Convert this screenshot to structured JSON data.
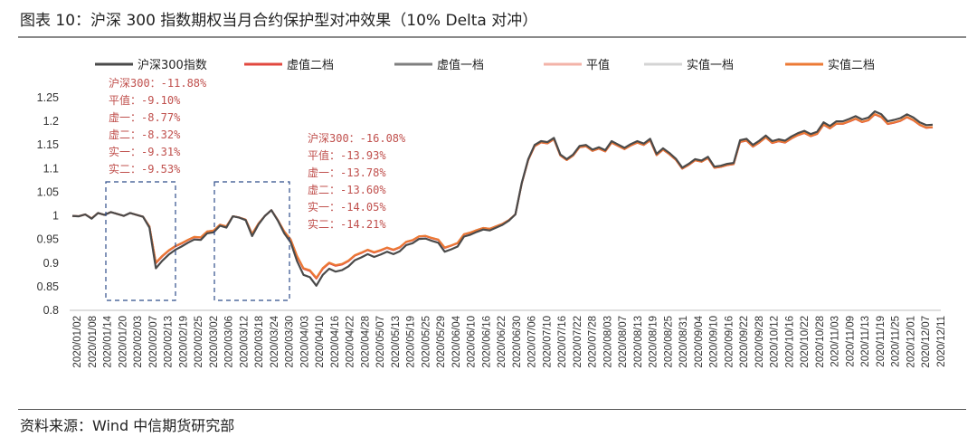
{
  "page": {
    "title": "图表 10：沪深 300 指数期权当月合约保护型对冲效果（10% Delta 对冲）",
    "source": "资料来源：Wind 中信期货研究部"
  },
  "chart_data": {
    "type": "line",
    "title": "图表 10：沪深 300 指数期权当月合约保护型对冲效果（10% Delta 对冲）",
    "xlabel": "",
    "ylabel": "",
    "ylim": [
      0.8,
      1.25
    ],
    "yticks": [
      "1.25",
      "1.2",
      "1.15",
      "1.1",
      "1.05",
      "1",
      "0.95",
      "0.9",
      "0.85",
      "0.8"
    ],
    "x_tick_labels": [
      "2020/01/02",
      "2020/01/08",
      "2020/01/14",
      "2020/01/20",
      "2020/02/03",
      "2020/02/07",
      "2020/02/13",
      "2020/02/19",
      "2020/02/25",
      "2020/03/02",
      "2020/03/06",
      "2020/03/12",
      "2020/03/18",
      "2020/03/24",
      "2020/03/30",
      "2020/04/03",
      "2020/04/10",
      "2020/04/16",
      "2020/04/22",
      "2020/04/28",
      "2020/05/07",
      "2020/05/13",
      "2020/05/19",
      "2020/05/25",
      "2020/05/29",
      "2020/06/04",
      "2020/06/10",
      "2020/06/16",
      "2020/06/22",
      "2020/06/30",
      "2020/07/06",
      "2020/07/10",
      "2020/07/16",
      "2020/07/22",
      "2020/07/28",
      "2020/08/03",
      "2020/08/07",
      "2020/08/13",
      "2020/08/19",
      "2020/08/25",
      "2020/08/31",
      "2020/09/04",
      "2020/09/10",
      "2020/09/16",
      "2020/09/22",
      "2020/09/28",
      "2020/10/12",
      "2020/10/16",
      "2020/10/22",
      "2020/10/28",
      "2020/11/03",
      "2020/11/09",
      "2020/11/13",
      "2020/11/19",
      "2020/11/25",
      "2020/12/01",
      "2020/12/07",
      "2020/12/11"
    ],
    "legend_position": "top",
    "index_values": [
      1.0,
      0.999,
      1.003,
      0.994,
      1.006,
      1.002,
      1.008,
      1.004,
      1.0,
      1.006,
      1.002,
      0.998,
      0.975,
      0.889,
      0.905,
      0.918,
      0.928,
      0.935,
      0.943,
      0.95,
      0.949,
      0.963,
      0.965,
      0.979,
      0.975,
      0.999,
      0.996,
      0.991,
      0.957,
      0.982,
      1.0,
      1.012,
      0.99,
      0.963,
      0.944,
      0.904,
      0.875,
      0.87,
      0.852,
      0.875,
      0.888,
      0.882,
      0.885,
      0.893,
      0.906,
      0.912,
      0.919,
      0.913,
      0.918,
      0.924,
      0.919,
      0.925,
      0.938,
      0.942,
      0.951,
      0.952,
      0.947,
      0.943,
      0.924,
      0.929,
      0.935,
      0.956,
      0.96,
      0.966,
      0.971,
      0.969,
      0.975,
      0.981,
      0.99,
      1.003,
      1.07,
      1.12,
      1.15,
      1.158,
      1.156,
      1.165,
      1.13,
      1.12,
      1.13,
      1.148,
      1.15,
      1.14,
      1.145,
      1.139,
      1.158,
      1.151,
      1.144,
      1.152,
      1.158,
      1.153,
      1.163,
      1.131,
      1.143,
      1.133,
      1.121,
      1.102,
      1.11,
      1.12,
      1.117,
      1.125,
      1.104,
      1.106,
      1.11,
      1.112,
      1.16,
      1.163,
      1.15,
      1.159,
      1.17,
      1.158,
      1.162,
      1.159,
      1.168,
      1.175,
      1.18,
      1.173,
      1.178,
      1.198,
      1.19,
      1.2,
      1.2,
      1.205,
      1.211,
      1.204,
      1.208,
      1.221,
      1.215,
      1.2,
      1.203,
      1.207,
      1.215,
      1.208,
      1.198,
      1.192,
      1.193
    ],
    "series": [
      {
        "name": "沪深300指数",
        "color": "#4a4a4a",
        "final_ratio": 1.0
      },
      {
        "name": "虚值二档",
        "color": "#e2483f",
        "final_ratio": 0.97
      },
      {
        "name": "虚值一档",
        "color": "#7f7f7f",
        "final_ratio": 0.971
      },
      {
        "name": "平值",
        "color": "#f3b3a8",
        "final_ratio": 0.972
      },
      {
        "name": "实值一档",
        "color": "#d4d4d4",
        "final_ratio": 0.973
      },
      {
        "name": "实值二档",
        "color": "#ec7a35",
        "final_ratio": 0.974
      }
    ],
    "annotations": [
      {
        "lines": [
          "沪深300：-11.88%",
          "平值：-9.10%",
          "虚一：-8.77%",
          "虚二：-8.32%",
          "实一：-9.31%",
          "实二：-9.53%"
        ]
      },
      {
        "lines": [
          "沪深300：-16.08%",
          "平值：-13.93%",
          "虚一：-13.78%",
          "虚二：-13.60%",
          "实一：-14.05%",
          "实二：-14.21%"
        ]
      }
    ]
  }
}
